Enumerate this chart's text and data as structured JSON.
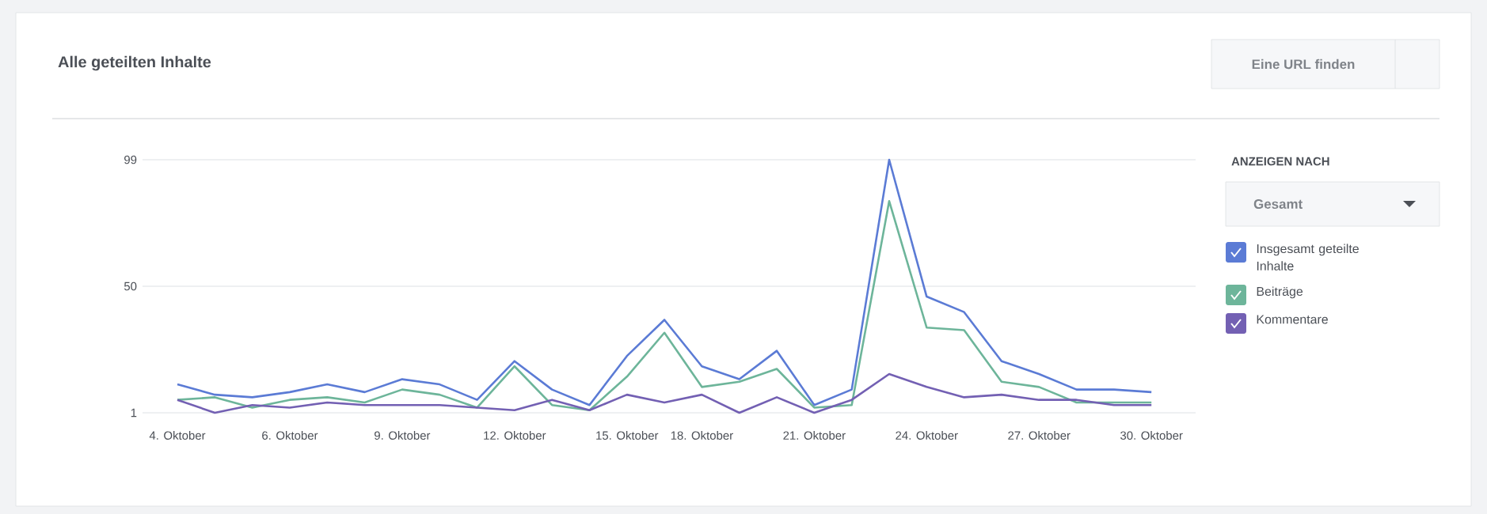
{
  "chart_data": {
    "type": "line",
    "title": "Alle geteilten Inhalte",
    "categories": [
      "4. Oktober",
      null,
      null,
      "6. Oktober",
      null,
      null,
      "9. Oktober",
      null,
      null,
      "12. Oktober",
      null,
      null,
      "15. Oktober",
      null,
      "18. Oktober",
      null,
      null,
      "21. Oktober",
      null,
      null,
      "24. Oktober",
      null,
      null,
      "27. Oktober",
      null,
      null,
      "30. Oktober"
    ],
    "series": [
      {
        "name": "Insgesamt geteilte Inhalte",
        "color": "#5b7bd5",
        "values": [
          12,
          8,
          7,
          9,
          12,
          9,
          14,
          12,
          6,
          21,
          10,
          4,
          23,
          37,
          19,
          14,
          25,
          4,
          10,
          99,
          46,
          40,
          21,
          16,
          10,
          10,
          9
        ]
      },
      {
        "name": "Beiträge",
        "color": "#6db59a",
        "values": [
          6,
          7,
          3,
          6,
          7,
          5,
          10,
          8,
          3,
          19,
          4,
          2,
          15,
          32,
          11,
          13,
          18,
          3,
          4,
          83,
          34,
          33,
          13,
          11,
          5,
          5,
          5
        ]
      },
      {
        "name": "Kommentare",
        "color": "#7360b3",
        "values": [
          6,
          1,
          4,
          3,
          5,
          4,
          4,
          4,
          3,
          2,
          6,
          2,
          8,
          5,
          8,
          1,
          7,
          1,
          6,
          16,
          11,
          7,
          8,
          6,
          6,
          4,
          4
        ]
      }
    ],
    "ylim": [
      1,
      99
    ],
    "yticks": [
      1,
      50,
      99
    ],
    "grid": "y",
    "legend": "right",
    "marker": "none",
    "line_style": "solid",
    "annotations": [
      "Eine URL finden",
      "ANZEIGEN NACH",
      "Gesamt"
    ]
  }
}
